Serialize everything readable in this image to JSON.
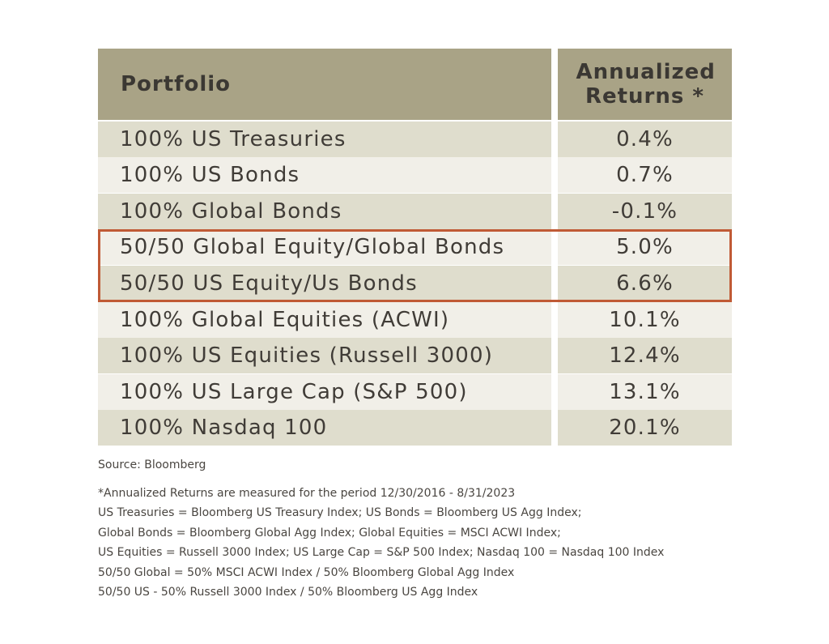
{
  "chart_data": {
    "type": "table",
    "columns": [
      "Portfolio",
      "Annualized Returns *"
    ],
    "rows": [
      {
        "portfolio": "100% US Treasuries",
        "return": "0.4%"
      },
      {
        "portfolio": "100% US Bonds",
        "return": "0.7%"
      },
      {
        "portfolio": "100% Global Bonds",
        "return": "-0.1%"
      },
      {
        "portfolio": "50/50 Global Equity/Global Bonds",
        "return": "5.0%"
      },
      {
        "portfolio": "50/50 US Equity/Us Bonds",
        "return": "6.6%"
      },
      {
        "portfolio": "100% Global Equities (ACWI)",
        "return": "10.1%"
      },
      {
        "portfolio": "100% US Equities (Russell 3000)",
        "return": "12.4%"
      },
      {
        "portfolio": "100% US Large Cap (S&P 500)",
        "return": "13.1%"
      },
      {
        "portfolio": "100% Nasdaq 100",
        "return": "20.1%"
      }
    ],
    "values": [
      0.4,
      0.7,
      -0.1,
      5.0,
      6.6,
      10.1,
      12.4,
      13.1,
      20.1
    ],
    "highlighted_rows": [
      3,
      4
    ],
    "colors": {
      "header": "#a9a386",
      "row_odd": "#dfddcd",
      "row_even": "#f1efe8",
      "highlight_border": "#c05a35"
    }
  },
  "source": "Source: Bloomberg",
  "footnotes": [
    "*Annualized Returns are measured for the period 12/30/2016 - 8/31/2023",
    "US Treasuries = Bloomberg US Treasury Index; US Bonds = Bloomberg US Agg Index;",
    "Global Bonds = Bloomberg Global Agg Index; Global Equities = MSCI ACWI Index;",
    "US Equities = Russell 3000 Index; US Large Cap = S&P 500 Index; Nasdaq 100 = Nasdaq 100 Index",
    "50/50 Global = 50% MSCI ACWI Index / 50% Bloomberg Global Agg Index",
    "50/50 US - 50% Russell 3000 Index / 50% Bloomberg US Agg Index"
  ]
}
